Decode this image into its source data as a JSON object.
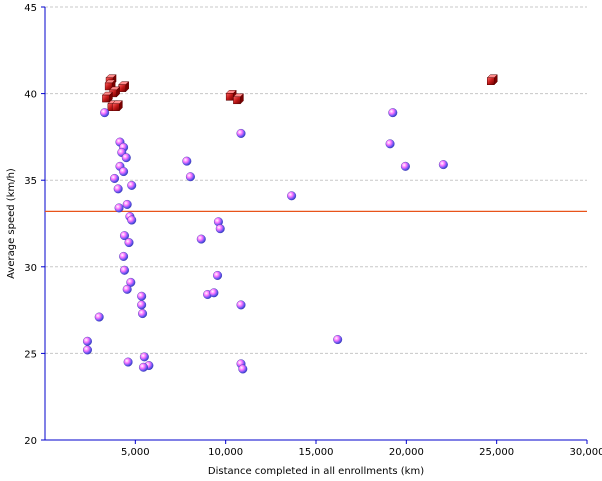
{
  "chart_data": {
    "type": "scatter",
    "title": "",
    "xlabel": "Distance completed in all enrollments (km)",
    "ylabel": "Average speed (km/h)",
    "xlim": [
      0,
      30000
    ],
    "ylim": [
      20,
      45
    ],
    "x_ticks": [
      5000,
      10000,
      15000,
      20000,
      25000,
      30000
    ],
    "x_tick_labels": [
      "5,000",
      "10,000",
      "15,000",
      "20,000",
      "25,000",
      "30,000"
    ],
    "y_ticks": [
      20,
      25,
      30,
      35,
      40,
      45
    ],
    "y_tick_labels": [
      "20",
      "25",
      "30",
      "35",
      "40",
      "45"
    ],
    "grid": "horizontal dashed",
    "reference_line": {
      "y": 33.2,
      "color": "#e8541a"
    },
    "colors": {
      "highlight": "#c01818",
      "regular": "#6a5cf0",
      "regular_accent": "#ff66ff",
      "axis": "#0000cc",
      "grid": "#c8c8c8"
    },
    "series": [
      {
        "marker": "red-cube",
        "points": [
          [
            3600,
            40.8
          ],
          [
            3550,
            40.5
          ],
          [
            4300,
            40.4
          ],
          [
            3800,
            40.1
          ],
          [
            3400,
            39.8
          ],
          [
            3700,
            39.3
          ],
          [
            3950,
            39.3
          ],
          [
            10250,
            39.9
          ],
          [
            10650,
            39.7
          ],
          [
            24700,
            40.8
          ]
        ]
      },
      {
        "marker": "blue-sphere",
        "points": [
          [
            3300,
            38.9
          ],
          [
            4150,
            37.2
          ],
          [
            4350,
            36.9
          ],
          [
            4250,
            36.6
          ],
          [
            4500,
            36.3
          ],
          [
            4150,
            35.8
          ],
          [
            4350,
            35.5
          ],
          [
            3850,
            35.1
          ],
          [
            4800,
            34.7
          ],
          [
            4050,
            34.5
          ],
          [
            4550,
            33.6
          ],
          [
            4100,
            33.4
          ],
          [
            4700,
            32.9
          ],
          [
            4800,
            32.7
          ],
          [
            4400,
            31.8
          ],
          [
            4650,
            31.4
          ],
          [
            4350,
            30.6
          ],
          [
            4400,
            29.8
          ],
          [
            4750,
            29.1
          ],
          [
            4550,
            28.7
          ],
          [
            5350,
            28.3
          ],
          [
            5350,
            27.8
          ],
          [
            5400,
            27.3
          ],
          [
            3000,
            27.1
          ],
          [
            2350,
            25.7
          ],
          [
            2350,
            25.2
          ],
          [
            4600,
            24.5
          ],
          [
            5500,
            24.8
          ],
          [
            5750,
            24.3
          ],
          [
            5450,
            24.2
          ],
          [
            7850,
            36.1
          ],
          [
            8050,
            35.2
          ],
          [
            8650,
            31.6
          ],
          [
            9600,
            32.6
          ],
          [
            9700,
            32.2
          ],
          [
            9550,
            29.5
          ],
          [
            9000,
            28.4
          ],
          [
            9350,
            28.5
          ],
          [
            10850,
            37.7
          ],
          [
            10850,
            27.8
          ],
          [
            10850,
            24.4
          ],
          [
            10950,
            24.1
          ],
          [
            13650,
            34.1
          ],
          [
            16200,
            25.8
          ],
          [
            19250,
            38.9
          ],
          [
            19100,
            37.1
          ],
          [
            19950,
            35.8
          ],
          [
            22050,
            35.9
          ]
        ]
      }
    ]
  }
}
